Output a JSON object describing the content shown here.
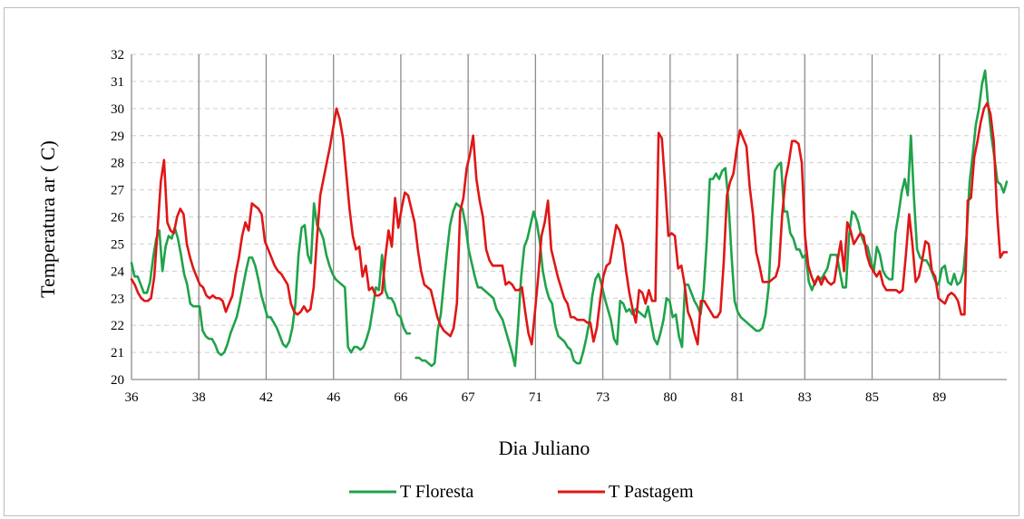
{
  "chart_data": {
    "type": "line",
    "xlabel": "Dia Juliano",
    "ylabel": "Temperatura ar ( C)",
    "ylim": [
      20,
      32
    ],
    "yticks": [
      20,
      21,
      22,
      23,
      24,
      25,
      26,
      27,
      28,
      29,
      30,
      31,
      32
    ],
    "xtick_labels": [
      "36",
      "38",
      "42",
      "46",
      "66",
      "67",
      "71",
      "73",
      "80",
      "81",
      "83",
      "85",
      "89"
    ],
    "grid": {
      "horizontal": "dashed",
      "vertical": "solid at day boundaries"
    },
    "legend_position": "bottom",
    "series": [
      {
        "name": "T Floresta",
        "color": "#1fa34a",
        "values": [
          24.3,
          23.8,
          23.8,
          23.5,
          23.2,
          23.2,
          23.6,
          24.5,
          25.2,
          25.5,
          24.0,
          24.9,
          25.3,
          25.2,
          25.6,
          25.2,
          24.6,
          23.9,
          23.5,
          22.8,
          22.7,
          22.7,
          22.7,
          21.8,
          21.6,
          21.5,
          21.5,
          21.3,
          21.0,
          20.9,
          21.0,
          21.3,
          21.7,
          22.0,
          22.3,
          22.8,
          23.4,
          24.0,
          24.5,
          24.5,
          24.2,
          23.7,
          23.1,
          22.7,
          22.3,
          22.3,
          22.1,
          21.9,
          21.6,
          21.3,
          21.2,
          21.4,
          21.9,
          22.8,
          24.6,
          25.6,
          25.7,
          24.6,
          24.3,
          26.5,
          25.7,
          25.5,
          25.2,
          24.6,
          24.2,
          23.9,
          23.7,
          23.6,
          23.5,
          23.4,
          21.2,
          21.0,
          21.2,
          21.2,
          21.1,
          21.2,
          21.5,
          21.9,
          22.6,
          23.4,
          23.3,
          24.6,
          23.3,
          23.0,
          23.0,
          22.8,
          22.4,
          22.3,
          21.9,
          21.7,
          21.7,
          null,
          20.8,
          20.8,
          20.7,
          20.7,
          20.6,
          20.5,
          20.6,
          21.8,
          22.4,
          23.6,
          24.7,
          25.7,
          26.2,
          26.5,
          26.4,
          26.3,
          25.7,
          24.8,
          24.3,
          23.8,
          23.4,
          23.4,
          23.3,
          23.2,
          23.1,
          23.0,
          22.6,
          22.4,
          22.2,
          21.8,
          21.4,
          21.0,
          20.5,
          22.0,
          23.8,
          24.9,
          25.2,
          25.7,
          26.2,
          25.8,
          25.1,
          24.0,
          23.4,
          23.0,
          22.8,
          22.0,
          21.6,
          21.5,
          21.4,
          21.2,
          21.1,
          20.7,
          20.6,
          20.6,
          21.0,
          21.5,
          22.1,
          23.1,
          23.7,
          23.9,
          23.5,
          23.0,
          22.6,
          22.2,
          21.5,
          21.3,
          22.9,
          22.8,
          22.5,
          22.6,
          22.4,
          22.6,
          22.5,
          22.4,
          22.3,
          22.7,
          22.1,
          21.5,
          21.3,
          21.7,
          22.2,
          23.0,
          22.9,
          22.3,
          22.4,
          21.6,
          21.2,
          23.5,
          23.5,
          23.2,
          22.9,
          22.7,
          22.4,
          23.3,
          25.1,
          27.4,
          27.4,
          27.6,
          27.4,
          27.7,
          27.8,
          26.6,
          24.6,
          22.9,
          22.5,
          22.3,
          22.2,
          22.1,
          22.0,
          21.9,
          21.8,
          21.8,
          21.9,
          22.4,
          23.4,
          25.8,
          27.7,
          27.9,
          28.0,
          26.2,
          26.2,
          25.4,
          25.2,
          24.8,
          24.8,
          24.5,
          24.6,
          23.6,
          23.3,
          23.6,
          23.8,
          23.7,
          23.9,
          24.1,
          24.6,
          24.6,
          24.6,
          24.0,
          23.4,
          23.4,
          25.3,
          26.2,
          26.1,
          25.8,
          25.3,
          25.0,
          24.9,
          24.4,
          24.0,
          24.9,
          24.6,
          24.0,
          23.8,
          23.7,
          23.7,
          25.4,
          26.1,
          26.9,
          27.4,
          26.8,
          29.0,
          26.7,
          24.8,
          24.5,
          24.4,
          24.4,
          24.2,
          23.9,
          23.6,
          23.5,
          24.1,
          24.2,
          23.6,
          23.5,
          23.9,
          23.5,
          23.6,
          24.0,
          25.3,
          27.3,
          28.3,
          29.4,
          30.0,
          30.9,
          31.4,
          30.1,
          29.0,
          28.2,
          27.3,
          27.2,
          26.9,
          27.3
        ]
      },
      {
        "name": "T Pastagem",
        "color": "#e01616",
        "values": [
          23.7,
          23.5,
          23.2,
          23.0,
          22.9,
          22.9,
          23.0,
          23.8,
          25.5,
          27.3,
          28.1,
          25.8,
          25.5,
          25.4,
          26.0,
          26.3,
          26.1,
          25.0,
          24.5,
          24.1,
          23.8,
          23.5,
          23.4,
          23.1,
          23.0,
          23.1,
          23.0,
          23.0,
          22.9,
          22.5,
          22.8,
          23.1,
          23.9,
          24.5,
          25.3,
          25.8,
          25.5,
          26.5,
          26.4,
          26.3,
          26.1,
          25.1,
          24.8,
          24.5,
          24.2,
          24.0,
          23.9,
          23.7,
          23.5,
          22.8,
          22.5,
          22.4,
          22.5,
          22.7,
          22.5,
          22.6,
          23.4,
          25.2,
          26.8,
          27.4,
          28.0,
          28.6,
          29.3,
          30.0,
          29.6,
          28.9,
          27.6,
          26.3,
          25.3,
          24.8,
          24.9,
          23.8,
          24.2,
          23.3,
          23.4,
          23.1,
          23.1,
          23.2,
          24.5,
          25.5,
          24.9,
          26.7,
          25.6,
          26.3,
          26.9,
          26.8,
          26.3,
          25.8,
          24.8,
          24.0,
          23.5,
          23.4,
          23.3,
          22.8,
          22.3,
          22.0,
          21.8,
          21.7,
          21.6,
          21.9,
          22.8,
          26.2,
          26.7,
          27.8,
          28.3,
          29.0,
          27.4,
          26.6,
          26.0,
          24.8,
          24.4,
          24.2,
          24.2,
          24.2,
          24.2,
          23.5,
          23.6,
          23.5,
          23.3,
          23.3,
          23.4,
          22.5,
          21.7,
          21.3,
          22.5,
          23.8,
          25.3,
          25.8,
          26.6,
          24.8,
          24.3,
          23.8,
          23.4,
          23.0,
          22.8,
          22.3,
          22.3,
          22.2,
          22.2,
          22.2,
          22.1,
          22.1,
          21.4,
          21.9,
          22.9,
          23.8,
          24.2,
          24.3,
          25.0,
          25.7,
          25.5,
          25.0,
          24.0,
          23.2,
          22.6,
          22.1,
          23.3,
          23.2,
          22.8,
          23.3,
          22.9,
          22.9,
          29.1,
          28.9,
          27.2,
          25.3,
          25.4,
          25.3,
          24.1,
          24.2,
          23.5,
          22.5,
          22.2,
          21.7,
          21.3,
          22.9,
          22.9,
          22.7,
          22.5,
          22.3,
          22.3,
          22.5,
          24.3,
          26.8,
          27.3,
          27.6,
          28.5,
          29.2,
          28.9,
          28.6,
          27.1,
          26.1,
          24.7,
          24.2,
          23.6,
          23.6,
          23.6,
          23.7,
          23.8,
          24.2,
          26.1,
          27.4,
          28.0,
          28.8,
          28.8,
          28.7,
          28.0,
          25.3,
          24.2,
          23.8,
          23.5,
          23.8,
          23.5,
          23.8,
          23.6,
          23.5,
          23.6,
          24.4,
          25.1,
          24.0,
          25.8,
          25.5,
          25.0,
          25.2,
          25.4,
          25.3,
          24.6,
          24.2,
          24.0,
          23.8,
          24.0,
          23.5,
          23.3,
          23.3,
          23.3,
          23.3,
          23.2,
          23.3,
          24.6,
          26.1,
          25.0,
          23.6,
          23.8,
          24.4,
          25.1,
          25.0,
          24.0,
          23.8,
          23.0,
          22.9,
          22.8,
          23.1,
          23.2,
          23.1,
          22.9,
          22.4,
          22.4,
          26.6,
          26.7,
          28.2,
          28.8,
          29.5,
          30.0,
          30.2,
          29.8,
          28.8,
          26.2,
          24.5,
          24.7,
          24.7
        ]
      }
    ]
  }
}
